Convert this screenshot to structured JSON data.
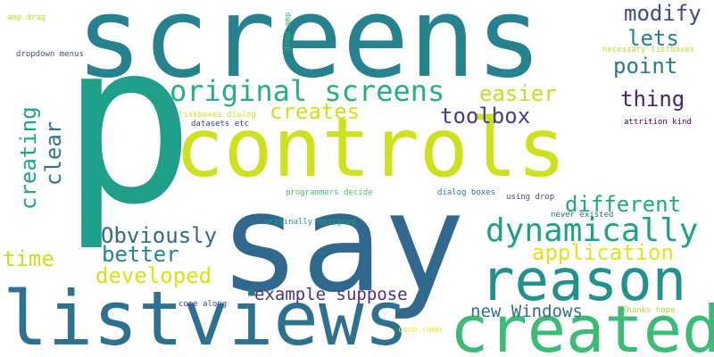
{
  "words": [
    {
      "text": "p",
      "color": "#1f9e89"
    },
    {
      "text": "screens",
      "color": "#26828e"
    },
    {
      "text": "say",
      "color": "#31688e"
    },
    {
      "text": "controls",
      "color": "#cde11d"
    },
    {
      "text": "listviews",
      "color": "#2c728e"
    },
    {
      "text": "created",
      "color": "#3bbb75"
    },
    {
      "text": "reason",
      "color": "#21918c"
    },
    {
      "text": "dynamically",
      "color": "#1fa187"
    },
    {
      "text": "original screens",
      "color": "#29af7f"
    },
    {
      "text": "creates",
      "color": "#d2e21b"
    },
    {
      "text": "easier",
      "color": "#c2df23"
    },
    {
      "text": "thing",
      "color": "#482475"
    },
    {
      "text": "toolbox",
      "color": "#433e85"
    },
    {
      "text": "point",
      "color": "#2a788e"
    },
    {
      "text": "lets",
      "color": "#25838e"
    },
    {
      "text": "modify",
      "color": "#3e4a89"
    },
    {
      "text": "different",
      "color": "#22a884"
    },
    {
      "text": "application",
      "color": "#e2e418"
    },
    {
      "text": "Obviously",
      "color": "#30698e"
    },
    {
      "text": "better",
      "color": "#25858e"
    },
    {
      "text": "developed",
      "color": "#d8e219"
    },
    {
      "text": "time",
      "color": "#c8e020"
    },
    {
      "text": "creating",
      "color": "#20a486"
    },
    {
      "text": "clear",
      "color": "#2c738e"
    },
    {
      "text": "example suppose",
      "color": "#46327e"
    },
    {
      "text": "new Windows",
      "color": "#2d708e"
    },
    {
      "text": "amp drag",
      "color": "#bddf26"
    },
    {
      "text": "dropdown menus",
      "color": "#3b528b"
    },
    {
      "text": "drop amp",
      "color": "#35b779"
    },
    {
      "text": "necessary listboxes",
      "color": "#b5de2b"
    },
    {
      "text": "listboxes dialog",
      "color": "#d0e11c"
    },
    {
      "text": "datasets etc",
      "color": "#414487"
    },
    {
      "text": "attrition kind",
      "color": "#440154"
    },
    {
      "text": "programmers decide",
      "color": "#4ac16d"
    },
    {
      "text": "dialog boxes",
      "color": "#2a788e"
    },
    {
      "text": "using drop",
      "color": "#3b528b"
    },
    {
      "text": "originally designed",
      "color": "#1fa187"
    },
    {
      "text": "never existed",
      "color": "#31688e"
    },
    {
      "text": "come along",
      "color": "#3e4989"
    },
    {
      "text": "Thanks hope",
      "color": "#a5db36"
    },
    {
      "text": "code come",
      "color": "#fde725"
    }
  ]
}
